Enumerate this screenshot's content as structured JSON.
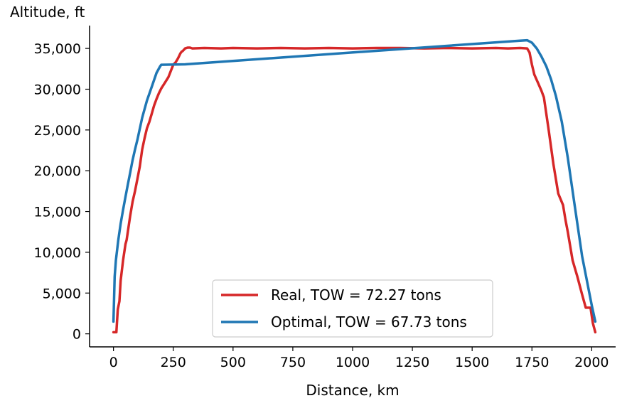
{
  "chart_data": {
    "type": "line",
    "title": "",
    "xlabel": "Distance, km",
    "ylabel": "Altitude, ft",
    "xlim": [
      -100,
      2100
    ],
    "ylim": [
      -1600,
      37800
    ],
    "grid": false,
    "legend_position": "bottom-center",
    "xticks": [
      {
        "value": 0,
        "label": "0"
      },
      {
        "value": 250,
        "label": "250"
      },
      {
        "value": 500,
        "label": "500"
      },
      {
        "value": 750,
        "label": "750"
      },
      {
        "value": 1000,
        "label": "1000"
      },
      {
        "value": 1250,
        "label": "1250"
      },
      {
        "value": 1500,
        "label": "1500"
      },
      {
        "value": 1750,
        "label": "1750"
      },
      {
        "value": 2000,
        "label": "2000"
      }
    ],
    "yticks": [
      {
        "value": 0,
        "label": "0"
      },
      {
        "value": 5000,
        "label": "5,000"
      },
      {
        "value": 10000,
        "label": "10,000"
      },
      {
        "value": 15000,
        "label": "15,000"
      },
      {
        "value": 20000,
        "label": "20,000"
      },
      {
        "value": 25000,
        "label": "25,000"
      },
      {
        "value": 30000,
        "label": "30,000"
      },
      {
        "value": 35000,
        "label": "35,000"
      }
    ],
    "series": [
      {
        "name": "Real, TOW = 72.27 tons",
        "color": "#d62728",
        "x": [
          0,
          12,
          18,
          25,
          30,
          40,
          50,
          55,
          60,
          70,
          80,
          90,
          100,
          110,
          120,
          130,
          140,
          150,
          160,
          170,
          180,
          190,
          200,
          215,
          230,
          250,
          260,
          270,
          280,
          285,
          290,
          300,
          310,
          320,
          330,
          380,
          450,
          500,
          600,
          700,
          800,
          900,
          1000,
          1100,
          1200,
          1300,
          1400,
          1500,
          1600,
          1650,
          1700,
          1730,
          1740,
          1750,
          1760,
          1775,
          1790,
          1800,
          1820,
          1840,
          1860,
          1880,
          1890,
          1900,
          1920,
          1940,
          1960,
          1975,
          1980,
          1995,
          2005,
          2015
        ],
        "y": [
          200,
          200,
          3000,
          4000,
          6500,
          9000,
          11000,
          11500,
          12500,
          14500,
          16200,
          17500,
          19000,
          20500,
          22600,
          24000,
          25200,
          26000,
          27000,
          28000,
          28800,
          29500,
          30100,
          30800,
          31500,
          33000,
          33300,
          33800,
          34400,
          34600,
          34700,
          35000,
          35100,
          35100,
          35000,
          35050,
          35000,
          35050,
          35000,
          35050,
          35000,
          35050,
          35000,
          35050,
          35050,
          35000,
          35050,
          35000,
          35050,
          35000,
          35050,
          35000,
          34500,
          33000,
          31800,
          30800,
          29800,
          29000,
          25000,
          20800,
          17200,
          15800,
          14000,
          12500,
          9000,
          7000,
          4800,
          3200,
          3200,
          3200,
          1300,
          200
        ]
      },
      {
        "name": "Optimal, TOW = 67.73 tons",
        "color": "#1f77b4",
        "x": [
          0,
          5,
          10,
          20,
          30,
          40,
          50,
          60,
          70,
          80,
          90,
          100,
          120,
          140,
          160,
          180,
          195,
          200,
          300,
          1700,
          1730,
          1750,
          1770,
          1790,
          1810,
          1830,
          1850,
          1875,
          1900,
          1930,
          1960,
          2000,
          2015
        ],
        "y": [
          1500,
          7000,
          9000,
          11500,
          13500,
          15200,
          16800,
          18300,
          19800,
          21300,
          22600,
          23800,
          26500,
          28600,
          30300,
          32000,
          32800,
          33000,
          33050,
          35950,
          36000,
          35700,
          35000,
          34000,
          32800,
          31200,
          29200,
          26000,
          21600,
          15500,
          9500,
          3500,
          1500
        ]
      }
    ]
  }
}
